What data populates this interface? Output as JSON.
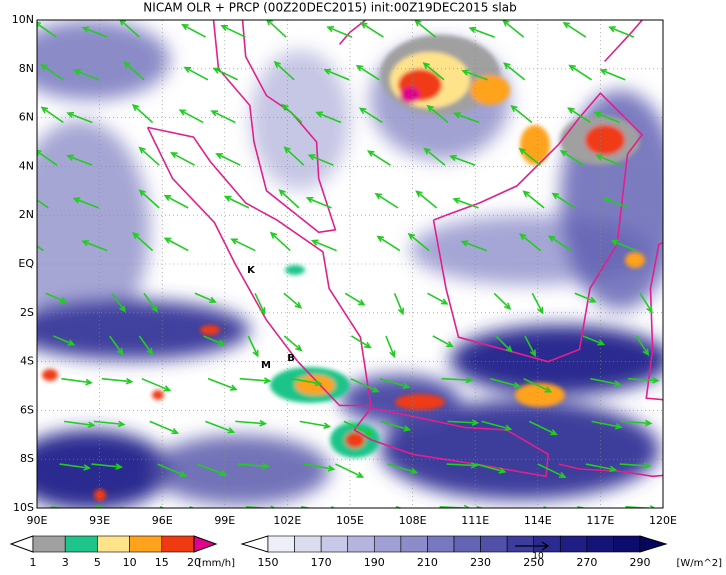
{
  "map": {
    "title": "NICAM OLR + PRCP (00Z20DEC2015) init:00Z19DEC2015 slab",
    "lat_labels": [
      "10N",
      "8N",
      "6N",
      "4N",
      "2N",
      "EQ",
      "2S",
      "4S",
      "6S",
      "8S",
      "10S"
    ],
    "lon_labels": [
      "90E",
      "93E",
      "96E",
      "99E",
      "102E",
      "105E",
      "108E",
      "111E",
      "114E",
      "117E",
      "120E"
    ],
    "place_labels": [
      "K",
      "M",
      "B"
    ],
    "precip_legend": {
      "ticks": [
        1,
        3,
        5,
        10,
        15,
        20
      ],
      "colors": [
        "#ffffff",
        "#a0a0a0",
        "#1ec48a",
        "#ffe38a",
        "#ffa21e",
        "#f03a12",
        "#e2008c"
      ],
      "unit": "[mm/h]"
    },
    "olr_legend": {
      "ticks": [
        150,
        170,
        190,
        210,
        230,
        250,
        270,
        290
      ],
      "colors": [
        "#ffffff",
        "#eeeef8",
        "#dcdcf0",
        "#c8c8e8",
        "#b4b4de",
        "#a0a0d4",
        "#8c8cca",
        "#7878c0",
        "#6464b4",
        "#5050a8",
        "#3c3c9c",
        "#2a2a90",
        "#1e1e84",
        "#141478",
        "#0c0c6c",
        "#060660"
      ],
      "unit": "[W/m^2]"
    },
    "vector_reference": "10"
  }
}
